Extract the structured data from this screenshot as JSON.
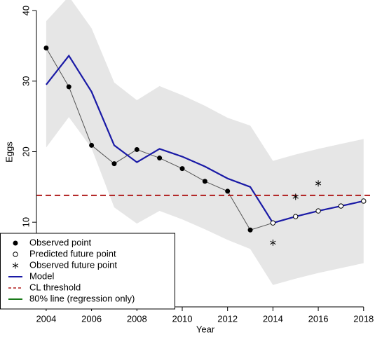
{
  "chart_data": {
    "type": "line",
    "x_label": "Year",
    "y_label": "Eggs",
    "x": [
      2004,
      2005,
      2006,
      2007,
      2008,
      2009,
      2010,
      2011,
      2012,
      2013,
      2014,
      2015,
      2016,
      2017,
      2018
    ],
    "xlim": [
      2003.57,
      2018.44
    ],
    "xticks": [
      2004,
      2006,
      2008,
      2010,
      2012,
      2014,
      2016,
      2018
    ],
    "ylim": [
      -2,
      41.5
    ],
    "yticks": [
      0,
      10,
      20,
      30,
      40
    ],
    "band": {
      "color": "#e6e6e6",
      "upper": [
        38.5,
        42,
        37.5,
        29.8,
        27.3,
        29.3,
        28.0,
        26.5,
        24.8,
        23.7,
        18.7,
        19.6,
        20.4,
        21.1,
        21.8
      ],
      "lower": [
        20.6,
        24.9,
        20.5,
        12.1,
        9.8,
        11.6,
        10.4,
        9.0,
        7.5,
        6.2,
        1.1,
        2.0,
        2.8,
        3.5,
        4.2
      ]
    },
    "series": [
      {
        "name": "Observed point",
        "marker": "filled",
        "color": "#000000",
        "values": [
          34.7,
          29.2,
          20.9,
          18.3,
          20.3,
          19.1,
          17.6,
          15.8,
          14.4,
          8.9,
          null,
          null,
          null,
          null,
          null
        ]
      },
      {
        "name": "Predicted future point",
        "marker": "open",
        "color": "#000000",
        "values": [
          null,
          null,
          null,
          null,
          null,
          null,
          null,
          null,
          null,
          null,
          9.9,
          10.8,
          11.6,
          12.3,
          13.0
        ]
      },
      {
        "name": "Observed future point",
        "marker": "asterisk",
        "color": "#000000",
        "values": [
          null,
          null,
          null,
          null,
          null,
          null,
          null,
          null,
          null,
          null,
          7.1,
          13.6,
          15.5,
          null,
          null
        ]
      },
      {
        "name": "Model",
        "marker": "line",
        "color": "#1a1aa6",
        "values": [
          29.5,
          33.6,
          28.5,
          20.9,
          18.5,
          20.4,
          19.3,
          17.9,
          16.2,
          15.0,
          9.9,
          10.8,
          11.6,
          12.3,
          13.0
        ]
      },
      {
        "name": "CL threshold",
        "marker": "dashed",
        "color": "#b01c1c",
        "value": 13.8
      },
      {
        "name": "80% line (regression only)",
        "marker": "line",
        "color": "#1a7a1a"
      }
    ]
  }
}
